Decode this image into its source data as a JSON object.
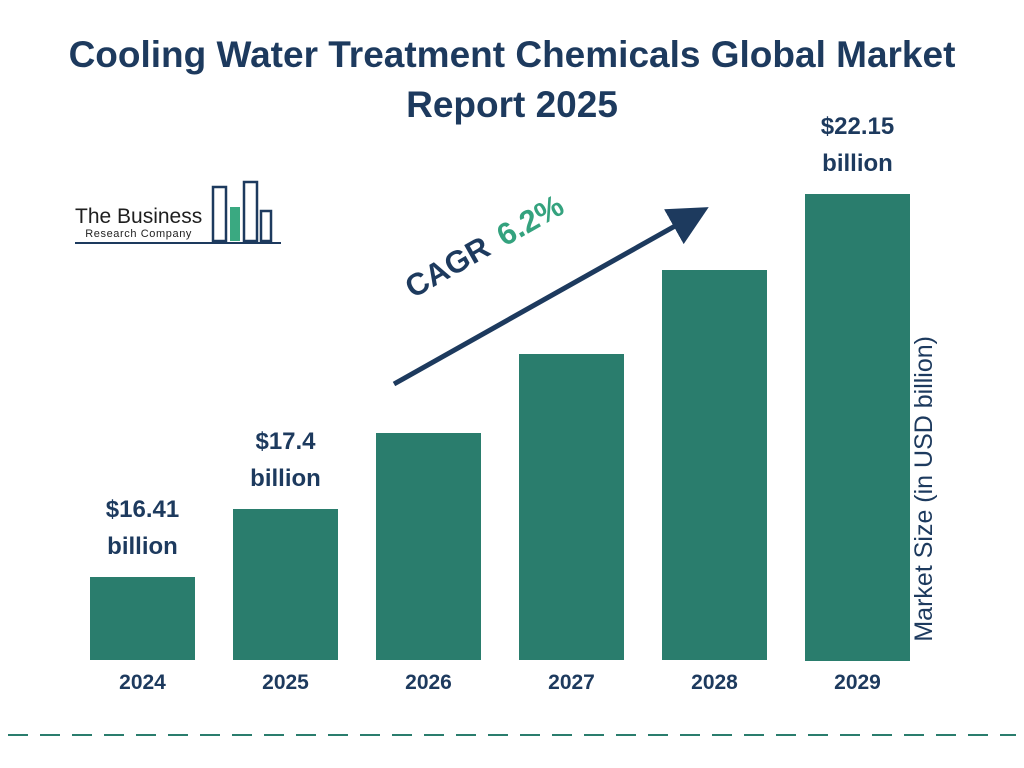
{
  "title": "Cooling Water Treatment Chemicals Global Market Report 2025",
  "logo": {
    "line1": "The Business",
    "line2": "Research Company"
  },
  "annotation": {
    "cagr_label": "CAGR",
    "cagr_value": "6.2%"
  },
  "ylabel": "Market Size (in USD billion)",
  "colors": {
    "bar": "#2a7d6d",
    "navy": "#1d3a5e",
    "green": "#34a27e",
    "dash": "#2a7d6d"
  },
  "chart_data": {
    "type": "bar",
    "title": "Cooling Water Treatment Chemicals Global Market Report 2025",
    "categories": [
      "2024",
      "2025",
      "2026",
      "2027",
      "2028",
      "2029"
    ],
    "values": [
      16.41,
      17.4,
      18.51,
      19.66,
      20.88,
      22.15
    ],
    "bar_value_labels": [
      {
        "index": 0,
        "value": "$16.41",
        "unit": "billion"
      },
      {
        "index": 1,
        "value": "$17.4",
        "unit": "billion"
      },
      {
        "index": 5,
        "value": "$22.15",
        "unit": "billion"
      }
    ],
    "xlabel": "",
    "ylabel": "Market Size (in USD billion)",
    "annotations": {
      "cagr": "CAGR 6.2%"
    },
    "ylim": [
      15.2,
      22.15
    ],
    "grid": false,
    "legend": false,
    "note": "bars not zero-based; heights scale from ~15.2 to 22.15 USD billion"
  }
}
